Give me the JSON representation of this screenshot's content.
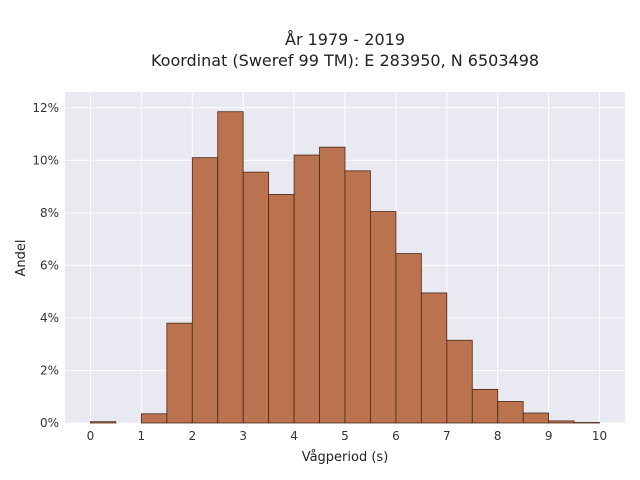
{
  "chart_data": {
    "type": "bar",
    "title": "År 1979 - 2019",
    "subtitle": "Koordinat (Sweref 99 TM): E 283950, N 6503498",
    "xlabel": "Vågperiod (s)",
    "ylabel": "Andel",
    "bin_width": 0.5,
    "bins_start": [
      0,
      0.5,
      1,
      1.5,
      2,
      2.5,
      3,
      3.5,
      4,
      4.5,
      5,
      5.5,
      6,
      6.5,
      7,
      7.5,
      8,
      8.5,
      9,
      9.5
    ],
    "values": [
      0.05,
      0,
      0.35,
      3.8,
      10.1,
      11.85,
      9.55,
      8.7,
      10.2,
      10.5,
      9.6,
      8.05,
      6.45,
      4.95,
      3.15,
      1.28,
      0.82,
      0.38,
      0.08,
      0.02
    ],
    "xlim": [
      -0.5,
      10.5
    ],
    "ylim": [
      0,
      12.6
    ],
    "xticks": [
      0,
      1,
      2,
      3,
      4,
      5,
      6,
      7,
      8,
      9,
      10
    ],
    "xtick_labels": [
      "0",
      "1",
      "2",
      "3",
      "4",
      "5",
      "6",
      "7",
      "8",
      "9",
      "10"
    ],
    "yticks": [
      0,
      2,
      4,
      6,
      8,
      10,
      12
    ],
    "ytick_labels": [
      "0%",
      "2%",
      "4%",
      "6%",
      "8%",
      "10%",
      "12%"
    ],
    "grid": true,
    "colors": {
      "bar": "#b5653d",
      "bar_edge": "#4a2a1a",
      "plot_bg": "#e9e9f1",
      "grid": "#ffffff"
    }
  }
}
